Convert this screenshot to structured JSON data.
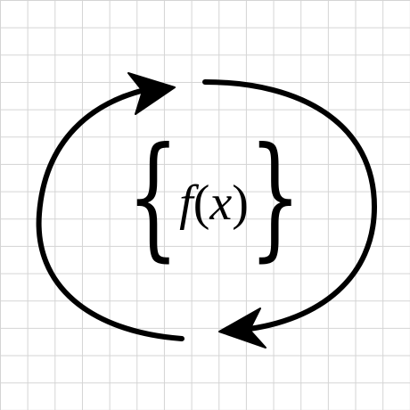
{
  "icon": {
    "name": "function-cycle-icon",
    "stroke_color": "#000000",
    "grid_color": "#d4d4d4",
    "background": "#ffffff"
  },
  "formula": {
    "brace_left": "{",
    "brace_right": "}",
    "function_name": "f",
    "paren_open": "(",
    "variable": "x",
    "paren_close": ")"
  }
}
